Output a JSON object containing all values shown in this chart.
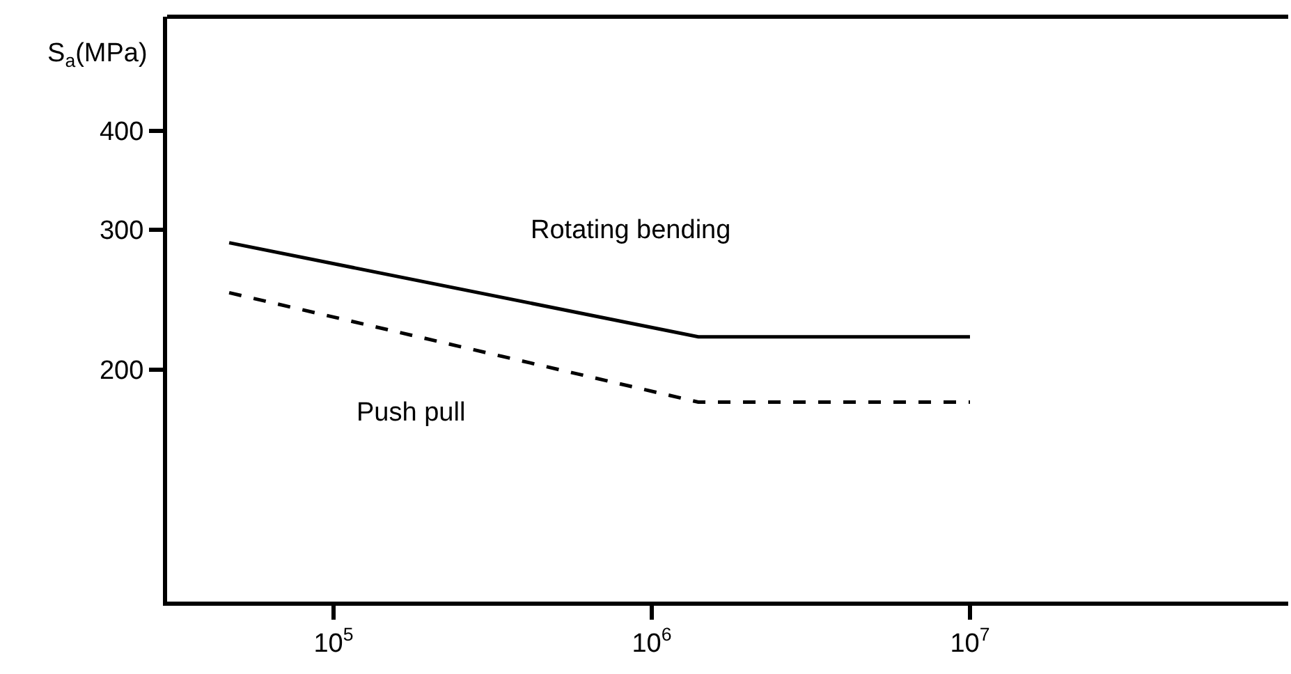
{
  "chart_data": {
    "type": "line",
    "ylabel": "S$_{a}$(MPa)",
    "log": "xy",
    "grid": false,
    "legend": false,
    "marker": "none",
    "x": [
      47000,
      1400000,
      10000000
    ],
    "series": [
      {
        "name": "Rotating bending",
        "color": "#000000",
        "line_style": "solid",
        "values": [
          289,
          220,
          220
        ]
      },
      {
        "name": "Push pull",
        "color": "#000000",
        "line_style": "dashed",
        "values": [
          250,
          182,
          182
        ]
      }
    ],
    "xlim": [
      30000,
      100000000
    ],
    "ylim": [
      102,
      557
    ],
    "xticks": [
      {
        "value": 100000,
        "label": "10$^{5}$"
      },
      {
        "value": 1000000,
        "label": "10$^{6}$"
      },
      {
        "value": 10000000,
        "label": "10$^{7}$"
      }
    ],
    "yticks": [
      200,
      300,
      400
    ]
  }
}
